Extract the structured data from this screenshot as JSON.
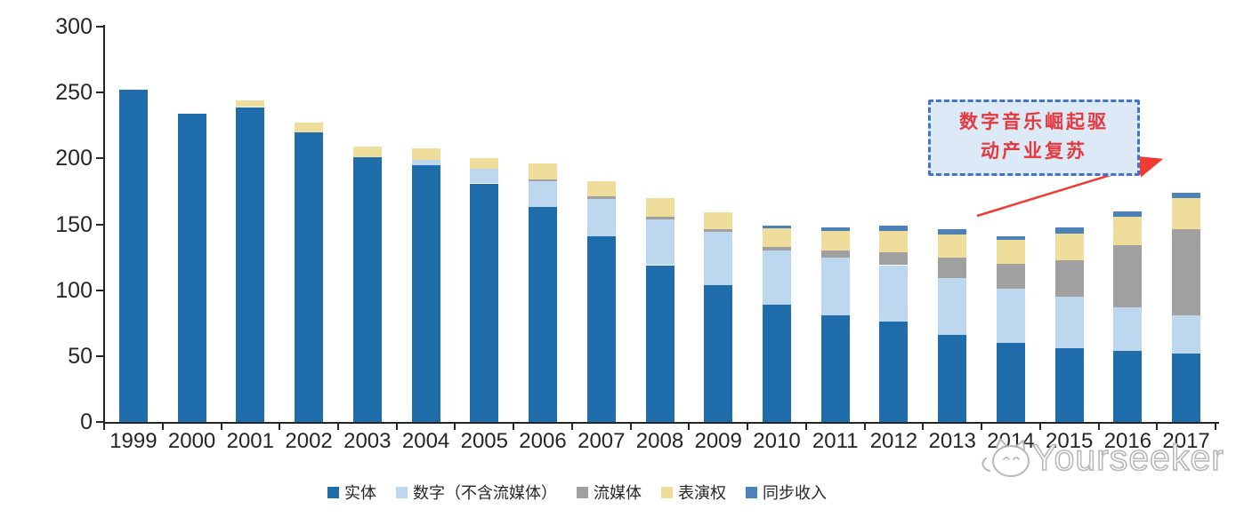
{
  "chart_data": {
    "type": "bar",
    "stacked": true,
    "title": "",
    "xlabel": "",
    "ylabel": "",
    "categories": [
      1999,
      2000,
      2001,
      2002,
      2003,
      2004,
      2005,
      2006,
      2007,
      2008,
      2009,
      2010,
      2011,
      2012,
      2013,
      2014,
      2015,
      2016,
      2017
    ],
    "series": [
      {
        "name": "实体",
        "color": "#1f6dab",
        "values": [
          252,
          234,
          239,
          220,
          201,
          195,
          181,
          163,
          141,
          119,
          104,
          89,
          81,
          76,
          66,
          60,
          56,
          54,
          52
        ]
      },
      {
        "name": "数字（不含流媒体）",
        "color": "#bdd7ee",
        "values": [
          0,
          0,
          0,
          0,
          0,
          4,
          11,
          20,
          28,
          35,
          40,
          41,
          44,
          43,
          43,
          41,
          39,
          33,
          29
        ]
      },
      {
        "name": "流媒体",
        "color": "#a0a0a0",
        "values": [
          0,
          0,
          0,
          0,
          0,
          0,
          0,
          1,
          2,
          2,
          2,
          3,
          5,
          10,
          16,
          19,
          28,
          47,
          65
        ]
      },
      {
        "name": "表演权",
        "color": "#efdd9b",
        "values": [
          0,
          0,
          5,
          7,
          8,
          9,
          8,
          12,
          12,
          14,
          13,
          14,
          15,
          16,
          17,
          18,
          20,
          22,
          24
        ]
      },
      {
        "name": "同步收入",
        "color": "#4d82b8",
        "values": [
          0,
          0,
          0,
          0,
          0,
          0,
          0,
          0,
          0,
          0,
          0,
          2,
          3,
          4,
          4,
          3,
          5,
          4,
          4
        ]
      }
    ],
    "ylim": [
      0,
      300
    ],
    "yticks": [
      0,
      50,
      100,
      150,
      200,
      250,
      300
    ],
    "grid": false,
    "legend_position": "bottom"
  },
  "annotation": {
    "line1": "数字音乐崛起驱",
    "line2": "动产业复苏",
    "text_color": "#e8383d",
    "box_fill": "#dce9f7",
    "box_border": "#4472c4",
    "arrow_color": "#ee3b33"
  },
  "axis": {
    "color": "#262626"
  },
  "watermark": {
    "text": "Yourseeker"
  }
}
